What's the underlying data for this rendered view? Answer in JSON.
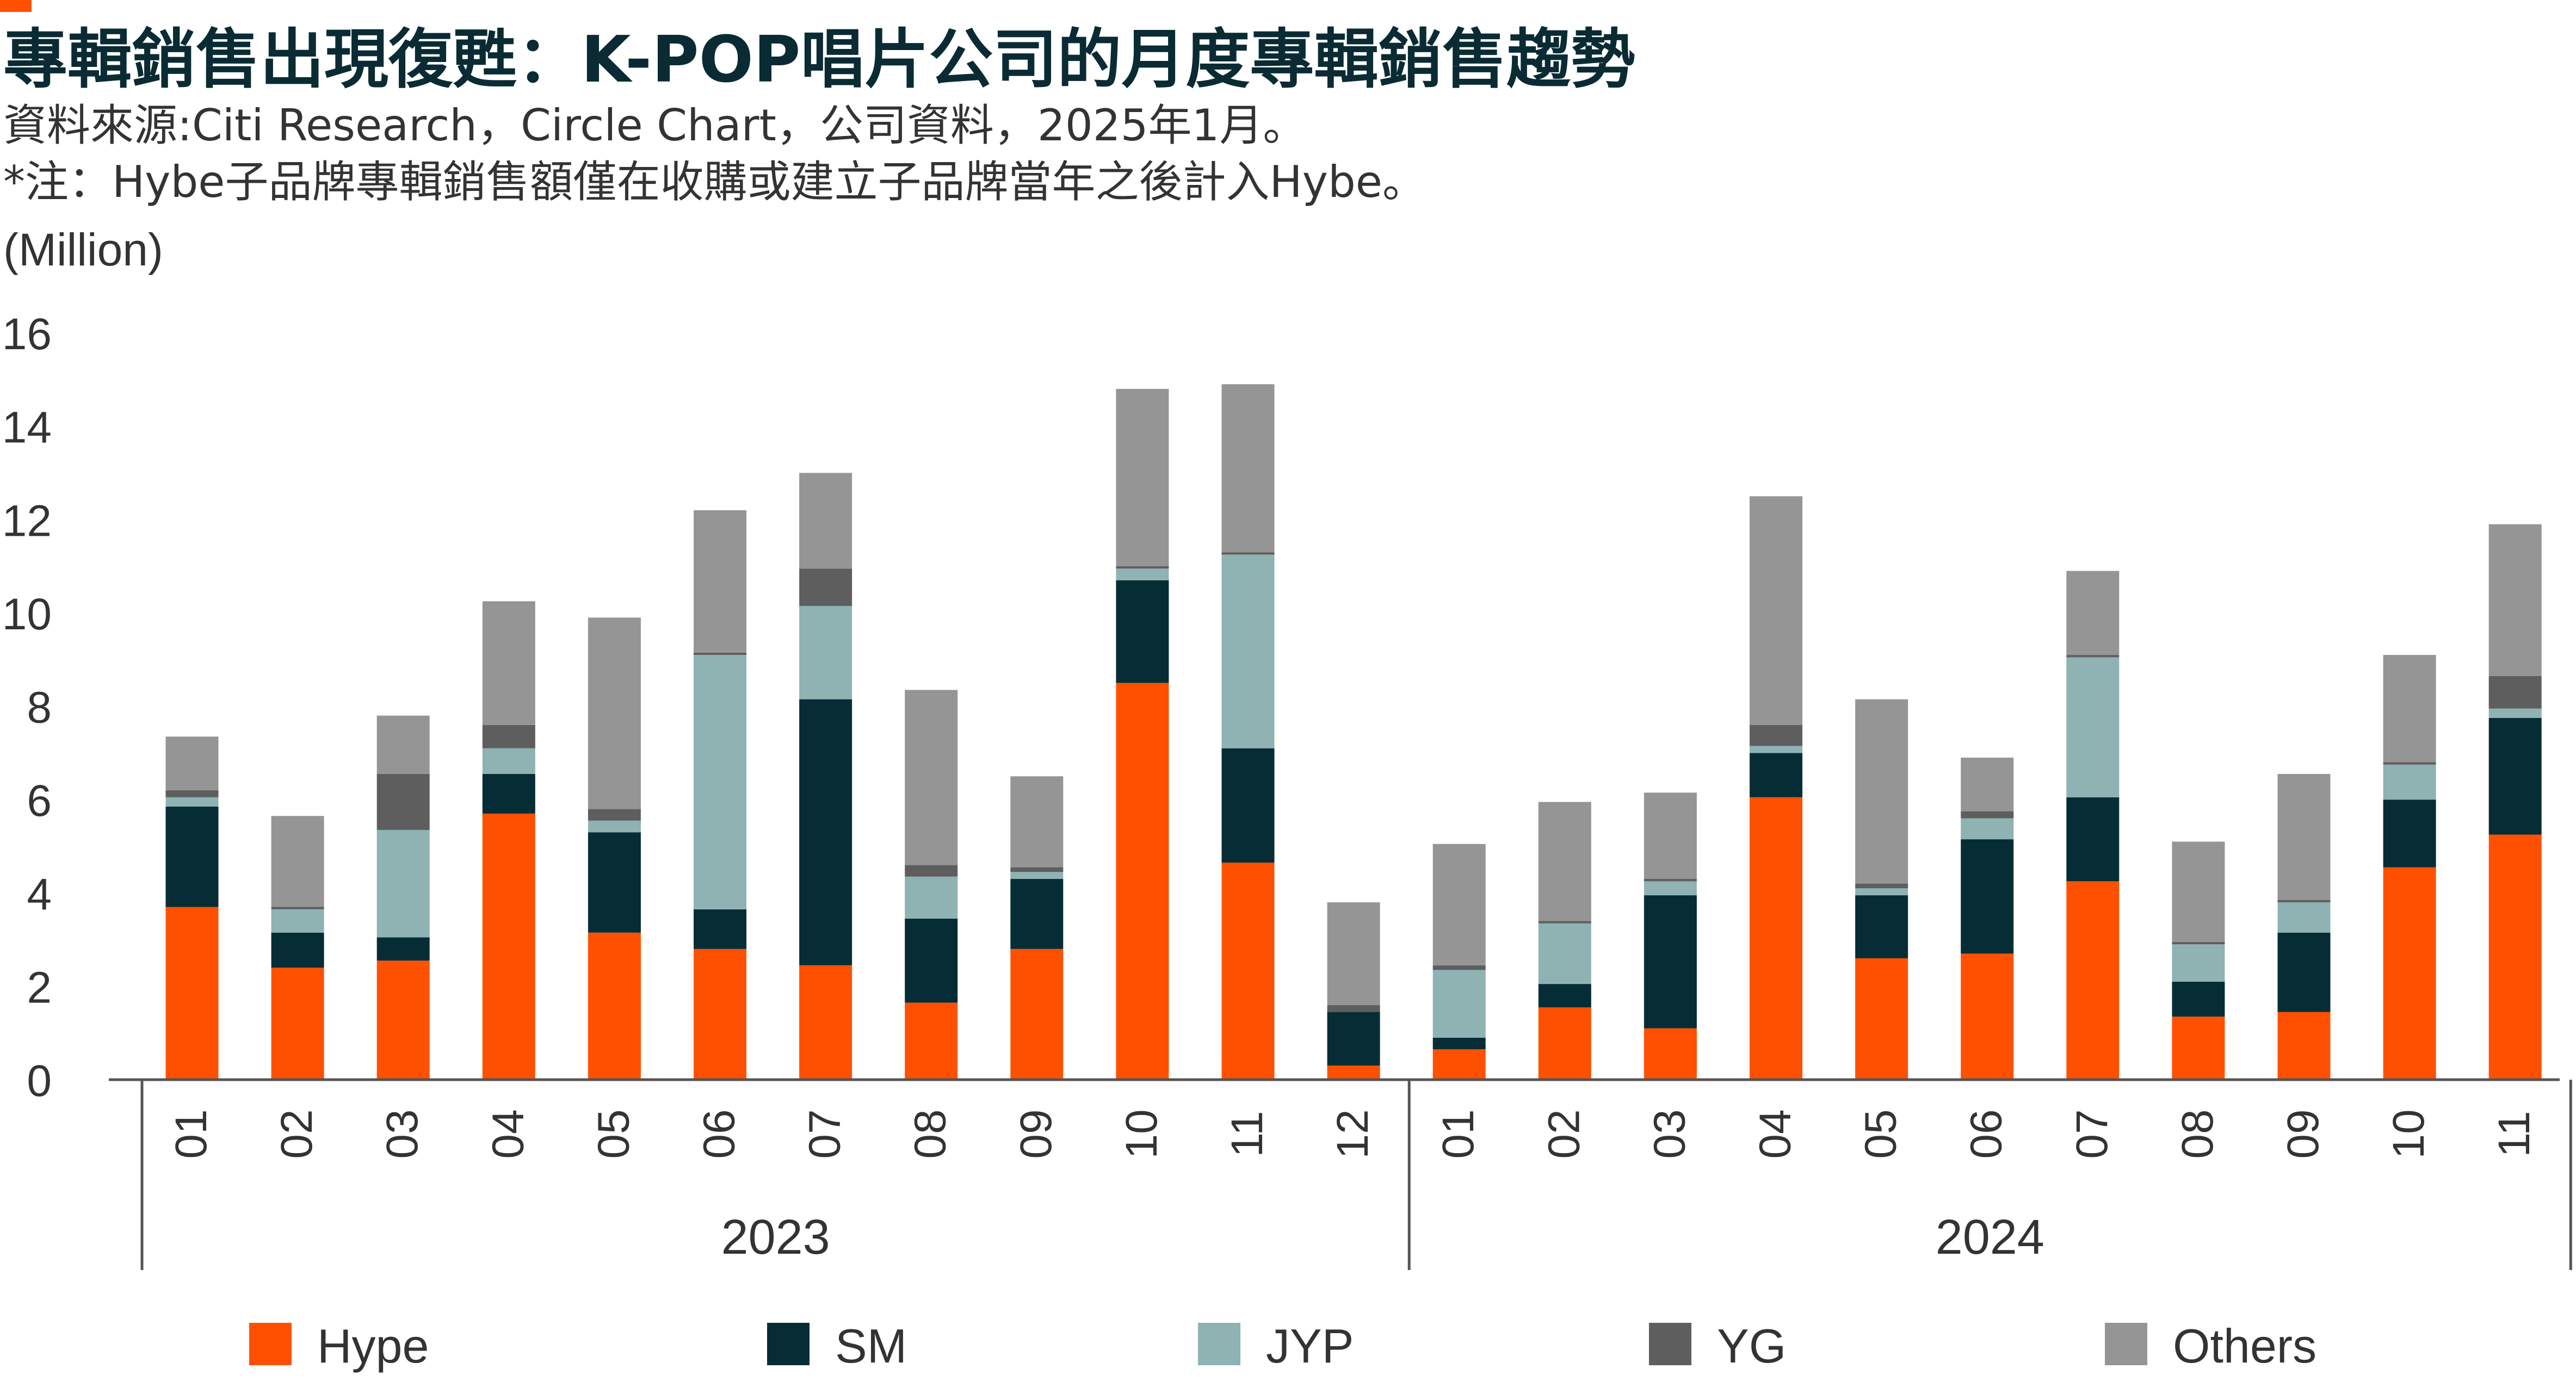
{
  "title": "專輯銷售出現復甦：K-POP唱片公司的月度專輯銷售趨勢",
  "source": "資料來源:Citi Research，Circle Chart，公司資料，2025年1月。",
  "note": "*注：Hybe子品牌專輯銷售額僅在收購或建立子品牌當年之後計入Hybe。",
  "colors": {
    "accent": "#ff5000",
    "Hype": "#ff5000",
    "SM": "#062d36",
    "JYP": "#8fb2b3",
    "YG": "#5e5e5e",
    "Others": "#959595"
  },
  "chart_data": {
    "type": "bar",
    "stacked": true,
    "ylabel": "(Million)",
    "ylim": [
      0,
      16
    ],
    "yticks": [
      0,
      2,
      4,
      6,
      8,
      10,
      12,
      14,
      16
    ],
    "categories": [
      "01",
      "02",
      "03",
      "04",
      "05",
      "06",
      "07",
      "08",
      "09",
      "10",
      "11",
      "12",
      "01",
      "02",
      "03",
      "04",
      "05",
      "06",
      "07",
      "08",
      "09",
      "10",
      "11"
    ],
    "groups": [
      {
        "label": "2023",
        "count": 12
      },
      {
        "label": "2024",
        "count": 11
      }
    ],
    "series": [
      {
        "name": "Hype",
        "values": [
          3.7,
          2.4,
          2.55,
          5.7,
          3.15,
          2.8,
          2.45,
          1.65,
          2.8,
          8.5,
          4.65,
          0.3,
          0.65,
          1.55,
          1.1,
          6.05,
          2.6,
          2.7,
          4.25,
          1.35,
          1.45,
          4.55,
          5.25
        ]
      },
      {
        "name": "SM",
        "values": [
          2.15,
          0.75,
          0.5,
          0.85,
          2.15,
          0.85,
          5.7,
          1.8,
          1.5,
          2.2,
          2.45,
          1.15,
          0.25,
          0.5,
          2.85,
          0.95,
          1.35,
          2.45,
          1.8,
          0.75,
          1.7,
          1.45,
          2.5
        ]
      },
      {
        "name": "JYP",
        "values": [
          0.2,
          0.5,
          2.3,
          0.55,
          0.25,
          5.45,
          2.0,
          0.9,
          0.15,
          0.25,
          4.15,
          0.0,
          1.45,
          1.3,
          0.3,
          0.15,
          0.15,
          0.45,
          3.0,
          0.8,
          0.65,
          0.75,
          0.2
        ]
      },
      {
        "name": "YG",
        "values": [
          0.15,
          0.05,
          1.2,
          0.5,
          0.25,
          0.05,
          0.8,
          0.25,
          0.1,
          0.05,
          0.05,
          0.15,
          0.1,
          0.05,
          0.05,
          0.45,
          0.1,
          0.15,
          0.05,
          0.05,
          0.05,
          0.05,
          0.7
        ]
      },
      {
        "name": "Others",
        "values": [
          1.15,
          1.95,
          1.25,
          2.65,
          4.1,
          3.05,
          2.05,
          3.75,
          1.95,
          3.8,
          3.6,
          2.2,
          2.6,
          2.55,
          1.85,
          4.9,
          3.95,
          1.15,
          1.8,
          2.15,
          2.7,
          2.3,
          3.25
        ]
      }
    ],
    "legend": [
      "Hype",
      "SM",
      "JYP",
      "YG",
      "Others"
    ],
    "legend_position": "bottom",
    "grid": false
  }
}
